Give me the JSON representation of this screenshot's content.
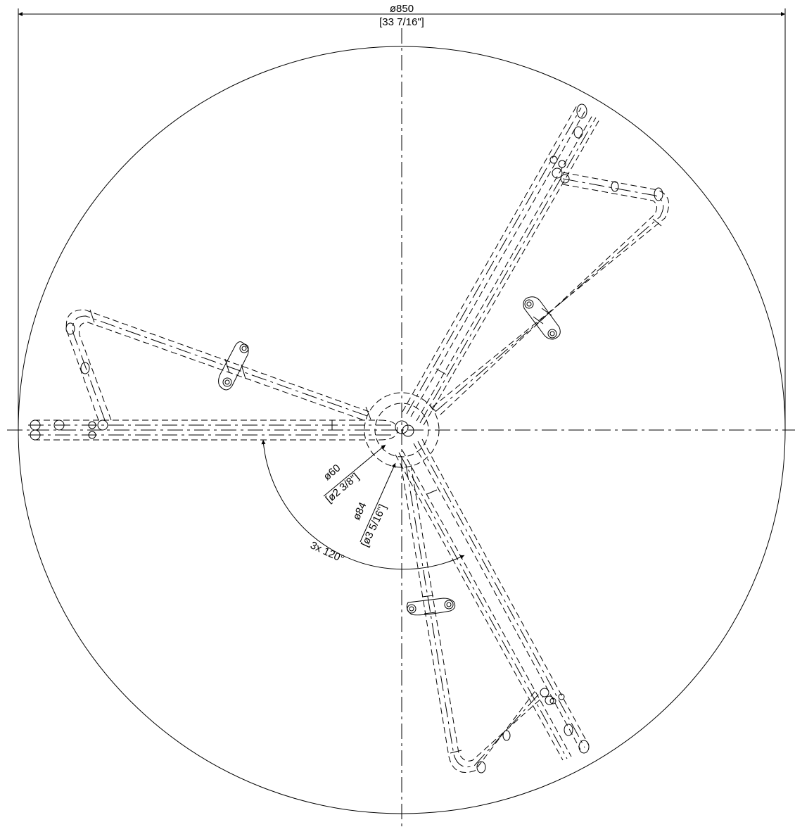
{
  "dimensions": {
    "overall_diameter": "ø850",
    "overall_diameter_imperial": "[33 7/16\"]",
    "inner_circle_diameter": "ø60",
    "inner_circle_diameter_imperial": "[ø2 3/8\"]",
    "outer_hub_diameter": "ø84",
    "outer_hub_diameter_imperial": "[ø3 5/16\"]",
    "angle_spacing": "3x 120°"
  },
  "colors": {
    "line": "#000000",
    "background": "#ffffff"
  }
}
